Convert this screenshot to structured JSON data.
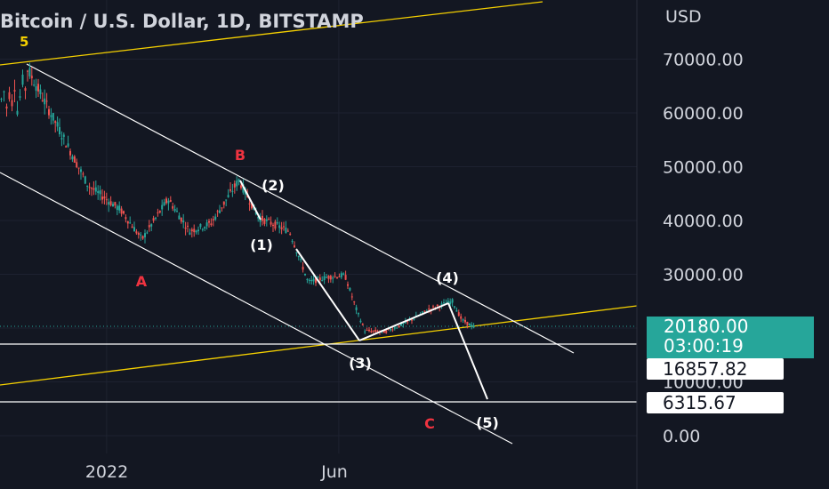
{
  "header": {
    "title": "Bitcoin / U.S. Dollar, 1D, BITSTAMP",
    "indicator": "5"
  },
  "price_axis": {
    "currency": "USD",
    "ticks": [
      "70000.00",
      "60000.00",
      "50000.00",
      "40000.00",
      "30000.00",
      "10000.00",
      "0.00"
    ]
  },
  "time_axis": {
    "ticks": [
      "2022",
      "Jun"
    ]
  },
  "last_price": {
    "value": "20180.00",
    "countdown": "03:00:19",
    "color": "#26a69a"
  },
  "levels": [
    {
      "label": "16857.82"
    },
    {
      "label": "6315.67"
    }
  ],
  "annotations": {
    "red": [
      "A",
      "B",
      "C"
    ],
    "white": [
      "(1)",
      "(2)",
      "(3)",
      "(4)",
      "(5)"
    ],
    "red_color": "#ef3340"
  },
  "chart_data": {
    "type": "line",
    "title": "Bitcoin / U.S. Dollar, 1D, BITSTAMP",
    "ylabel": "USD",
    "ylim": [
      -3000,
      80000
    ],
    "series": [
      {
        "x": [
          "2021-11-10",
          "2021-12-01",
          "2021-12-20",
          "2022-01-10",
          "2022-01-24",
          "2022-02-10",
          "2022-02-24",
          "2022-03-10",
          "2022-03-28",
          "2022-04-10",
          "2022-04-30",
          "2022-05-09",
          "2022-05-12",
          "2022-05-25",
          "2022-06-05",
          "2022-06-13",
          "2022-06-18",
          "2022-07-01",
          "2022-07-15",
          "2022-07-30",
          "2022-08-14",
          "2022-08-20",
          "2022-08-28"
        ],
        "values": [
          68500,
          57000,
          46500,
          42000,
          36500,
          44000,
          38000,
          39500,
          47500,
          40500,
          38000,
          31000,
          28500,
          29500,
          29800,
          23000,
          19500,
          19300,
          21000,
          23500,
          25000,
          21500,
          20180
        ]
      }
    ]
  }
}
